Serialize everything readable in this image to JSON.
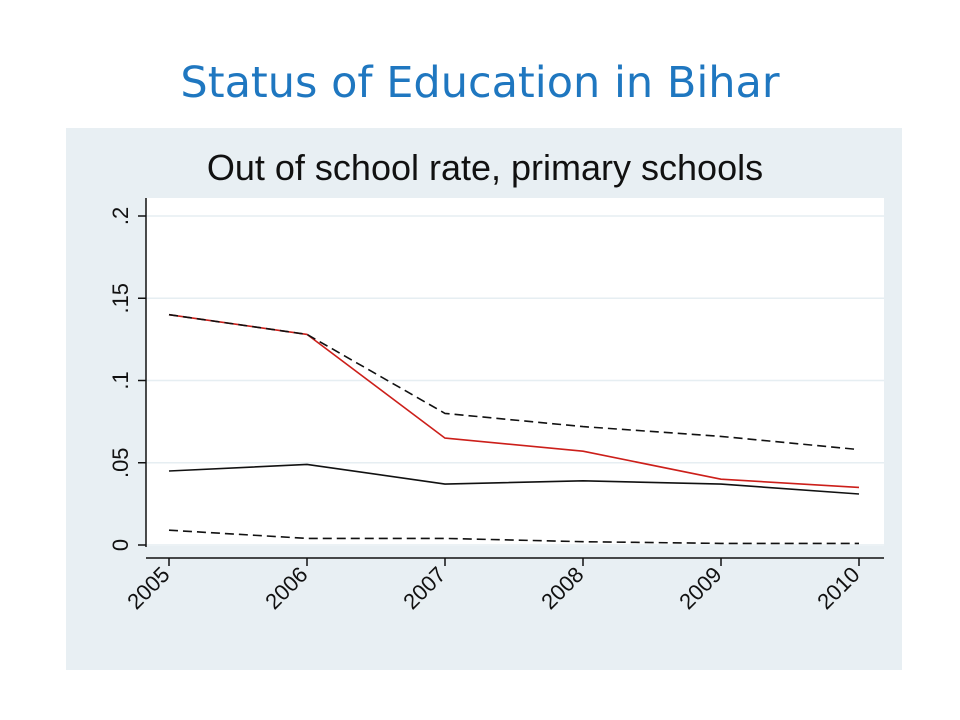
{
  "slide": {
    "title": "Status of Education in Bihar"
  },
  "colors": {
    "title": "#1f77c0",
    "panel_background": "#e8eff3",
    "plot_background": "#ffffff",
    "series_red": "#cc1f1a",
    "series_black": "#111111"
  },
  "chart_data": {
    "type": "line",
    "title": "Out of school rate, primary schools",
    "xlabel": "",
    "ylabel": "",
    "x": [
      "2005",
      "2006",
      "2007",
      "2008",
      "2009",
      "2010"
    ],
    "ylim": [
      0,
      0.2
    ],
    "yticks": [
      0,
      0.05,
      0.1,
      0.15,
      0.2
    ],
    "ytick_labels": [
      "0",
      ".05",
      ".1",
      ".15",
      ".2"
    ],
    "grid": true,
    "legend": "none",
    "series": [
      {
        "values": [
          0.14,
          0.128,
          0.065,
          0.057,
          0.04,
          0.035
        ],
        "color": "#cc1f1a",
        "style": "solid"
      },
      {
        "values": [
          0.14,
          0.128,
          0.08,
          0.072,
          0.066,
          0.058
        ],
        "color": "#111111",
        "style": "dashed"
      },
      {
        "values": [
          0.045,
          0.049,
          0.037,
          0.039,
          0.037,
          0.031
        ],
        "color": "#111111",
        "style": "solid"
      },
      {
        "values": [
          0.009,
          0.004,
          0.004,
          0.002,
          0.001,
          0.001
        ],
        "color": "#111111",
        "style": "dashed"
      }
    ]
  }
}
